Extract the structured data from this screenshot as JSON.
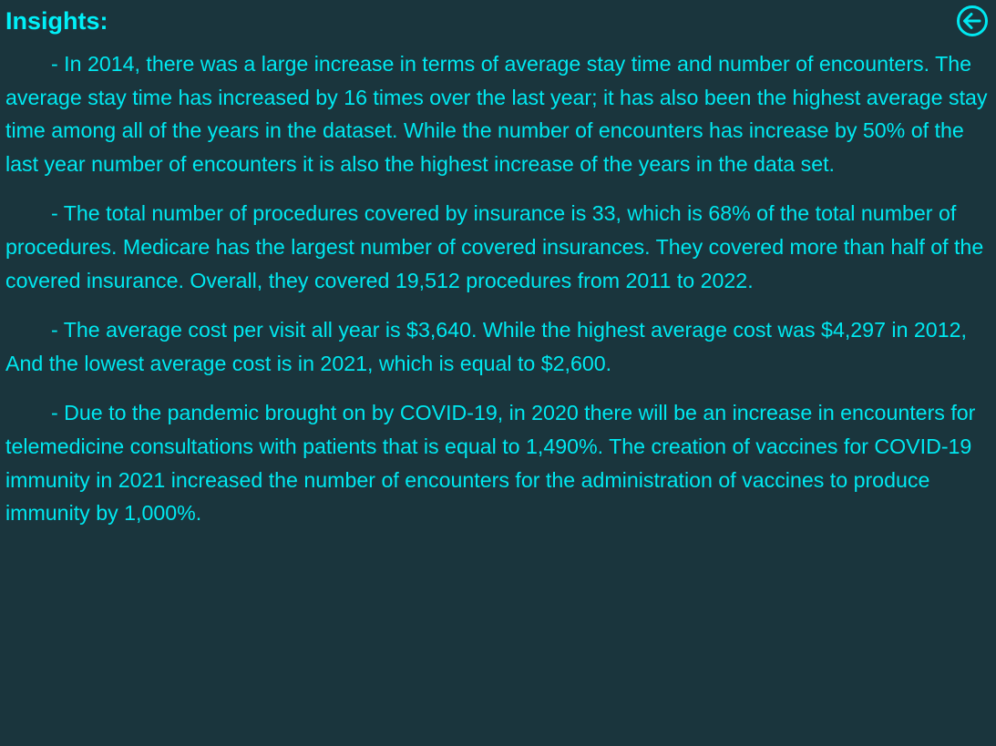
{
  "title": "Insights:",
  "back_icon": "arrow-left-circle-icon",
  "colors": {
    "background": "#1a353d",
    "text": "#00e8f0"
  },
  "paragraphs": [
    "- In 2014, there was a large increase in terms of average stay time and number of encounters. The average stay time has increased by 16 times over the last year; it has also been the highest average stay time among all of the years in the dataset. While the number of encounters has increase by 50% of the last year number of encounters it is also the highest increase of the years in the data set.",
    "- The total number of procedures covered by insurance is 33, which is 68% of the total number of procedures. Medicare has the largest number of covered insurances. They covered more than half of the covered insurance. Overall, they covered 19,512 procedures from 2011 to 2022.",
    "- The average cost per visit all year is $3,640. While the highest average cost was $4,297 in 2012, And the lowest average cost is in 2021, which is equal to $2,600.",
    "- Due to the pandemic brought on by COVID-19, in 2020 there will be an increase in encounters for telemedicine consultations with patients that is equal to 1,490%. The creation of vaccines for COVID-19 immunity in 2021 increased the number of encounters for the administration of vaccines to produce immunity by 1,000%."
  ]
}
